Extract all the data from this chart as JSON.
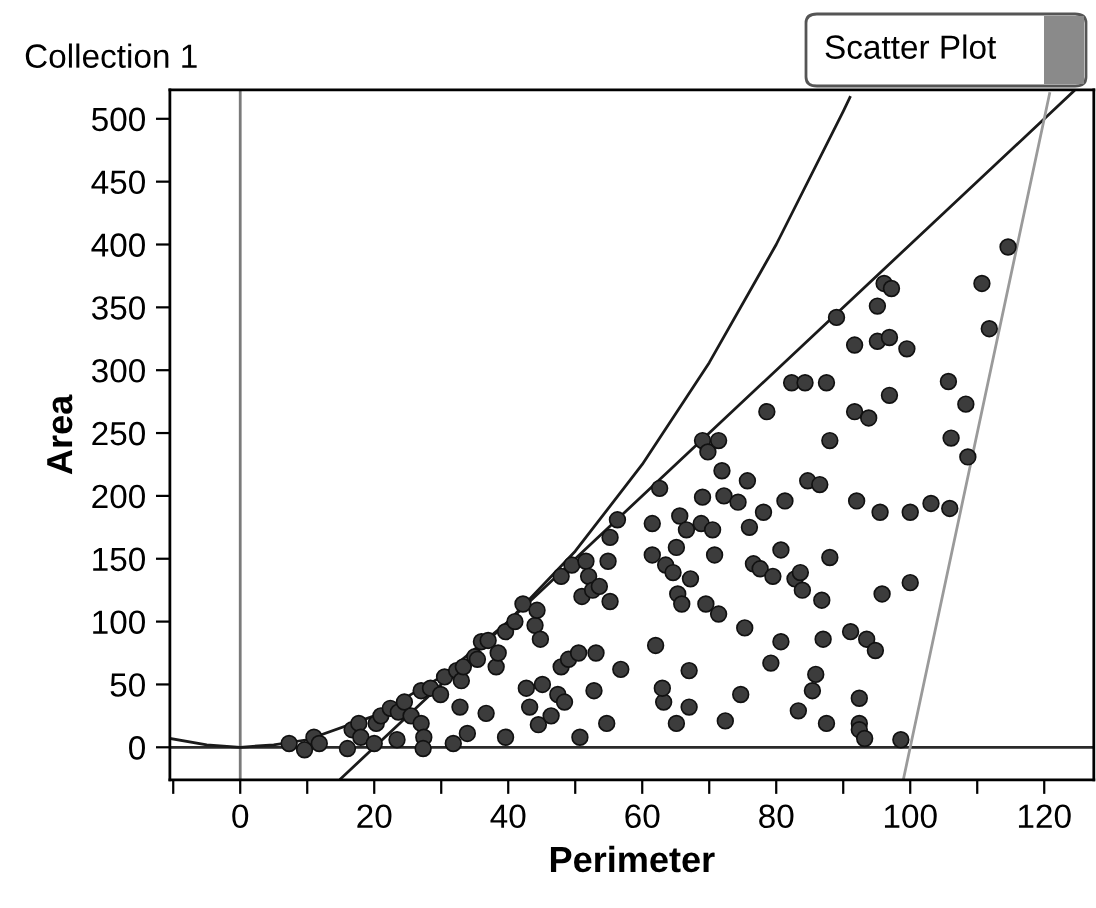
{
  "chart_data": {
    "type": "scatter",
    "title": "Collection 1",
    "xlabel": "Perimeter",
    "ylabel": "Area",
    "annotations": [
      "Scatter Plot"
    ],
    "xlim": [
      -10.5,
      127.4
    ],
    "ylim": [
      -26,
      523
    ],
    "xticks": [
      {
        "value": -10,
        "label": null
      },
      0,
      {
        "value": 10,
        "label": null
      },
      20,
      {
        "value": 30,
        "label": null
      },
      40,
      {
        "value": 50,
        "label": null
      },
      60,
      {
        "value": 70,
        "label": null
      },
      80,
      {
        "value": 90,
        "label": null
      },
      100,
      {
        "value": 110,
        "label": null
      },
      120
    ],
    "yticks": [
      0,
      50,
      100,
      150,
      200,
      250,
      300,
      350,
      400,
      450,
      500
    ],
    "grid": false,
    "legend": false,
    "marker": "circle",
    "ref_lines": [
      {
        "axis": "x",
        "value": 0,
        "color": "#7a7a7a"
      },
      {
        "axis": "y",
        "value": 0,
        "color": "#2a2a2a"
      }
    ],
    "series": [
      {
        "color": "#3c3c3c",
        "x": [
          7.3,
          9.6,
          11,
          11.8,
          16,
          16.7,
          17.7,
          18,
          20,
          20.3,
          21,
          22.4,
          23.4,
          23.6,
          24.5,
          25.5,
          27,
          27.4,
          27.3,
          27,
          28.4,
          29.9,
          30.5,
          31.8,
          32.3,
          32.8,
          33,
          33.9,
          33.3,
          35,
          36,
          35.4,
          36.7,
          37,
          38.2,
          38.5,
          39.6,
          39.6,
          41,
          42.2,
          42.7,
          43.2,
          44,
          44.3,
          44.5,
          44.8,
          45.1,
          46.4,
          47.4,
          47.9,
          48.4,
          47.9,
          49,
          49.5,
          50.5,
          50.7,
          51,
          51.6,
          52,
          52.6,
          52.8,
          53.1,
          53.6,
          54.7,
          54.9,
          55.2,
          55.2,
          56.3,
          56.8,
          61.5,
          61.5,
          62,
          62.6,
          63.2,
          63,
          63.5,
          64.6,
          65.1,
          65.1,
          65.3,
          65.6,
          65.9,
          66.6,
          67,
          67,
          67.2,
          68.8,
          69,
          69,
          69.5,
          69.8,
          70.5,
          70.8,
          71.4,
          71.4,
          71.9,
          72.2,
          72.4,
          74.3,
          74.7,
          75.3,
          75.7,
          76,
          76.6,
          77.6,
          78.1,
          78.6,
          79.2,
          79.5,
          80.7,
          80.7,
          81.3,
          82.3,
          82.8,
          83.3,
          83.6,
          83.9,
          84.3,
          84.7,
          85.4,
          85.9,
          86.5,
          86.8,
          87,
          87.5,
          87.5,
          88,
          88,
          89,
          91.1,
          91.7,
          91.7,
          92,
          92.4,
          92.4,
          92.4,
          93.2,
          93.8,
          93.5,
          94.8,
          95.1,
          95.1,
          95.5,
          95.8,
          96.1,
          96.9,
          96.9,
          97.2,
          98.6,
          99.5,
          100,
          100,
          103.1,
          105.7,
          105.9,
          106.1,
          108.3,
          108.6,
          110.7,
          111.8,
          114.6
        ],
        "values": [
          3,
          -2,
          8,
          3,
          -1,
          14,
          19,
          8,
          3,
          19,
          25,
          31,
          6,
          28,
          36,
          25,
          19,
          8,
          -1,
          45,
          47,
          42,
          56,
          3,
          61,
          32,
          53,
          11,
          64,
          72,
          84,
          70,
          27,
          85,
          64,
          75,
          8,
          92,
          100,
          114,
          47,
          32,
          97,
          109,
          18,
          86,
          50,
          25,
          42,
          64,
          36,
          136,
          70,
          145,
          75,
          8,
          120,
          148,
          136,
          125,
          45,
          75,
          128,
          19,
          148,
          167,
          116,
          181,
          62,
          178,
          153,
          81,
          206,
          36,
          47,
          145,
          139,
          159,
          19,
          122,
          184,
          114,
          173,
          61,
          32,
          134,
          178,
          199,
          244,
          114,
          235,
          173,
          153,
          244,
          106,
          220,
          200,
          21,
          195,
          42,
          95,
          212,
          175,
          146,
          142,
          187,
          267,
          67,
          136,
          157,
          84,
          196,
          290,
          134,
          29,
          139,
          125,
          290,
          212,
          45,
          58,
          209,
          117,
          86,
          290,
          19,
          244,
          151,
          342,
          92,
          320,
          267,
          196,
          39,
          19,
          14,
          7,
          262,
          86,
          77,
          351,
          323,
          187,
          122,
          369,
          280,
          326,
          365,
          6,
          317,
          131,
          187,
          194,
          291,
          190,
          246,
          273,
          231,
          369,
          333,
          398
        ]
      },
      {
        "type": "line",
        "color": "#1a1a1a",
        "marker": "none",
        "line_style": "solid",
        "x": [
          -10.5,
          -5,
          0,
          5,
          10,
          20,
          30,
          40,
          50,
          60,
          70,
          80,
          90,
          91
        ],
        "values": [
          7,
          2,
          0,
          2,
          6,
          25,
          56,
          100,
          156,
          225,
          306,
          400,
          506,
          517
        ]
      },
      {
        "type": "line",
        "color": "#1a1a1a",
        "marker": "none",
        "line_style": "solid",
        "x": [
          15,
          124.4
        ],
        "values": [
          -25,
          522
        ]
      },
      {
        "type": "line",
        "color": "#9a9a9a",
        "marker": "none",
        "line_style": "solid",
        "x": [
          99,
          120.8
        ],
        "values": [
          -25,
          520
        ]
      }
    ]
  }
}
